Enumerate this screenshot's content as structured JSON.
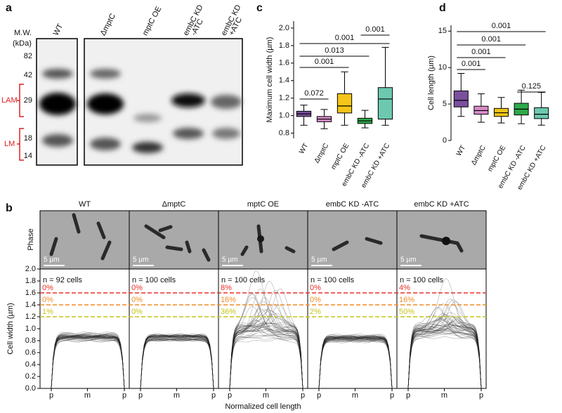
{
  "panel_a": {
    "letter": "a",
    "mw_label": "M.W.",
    "mw_unit": "(kDa)",
    "markers": [
      82,
      42,
      29,
      18,
      14
    ],
    "lanes": [
      [
        "WT"
      ],
      [
        "ΔmptC"
      ],
      [
        "mptC OE"
      ],
      [
        "embC KD",
        "-ATC"
      ],
      [
        "embC KD",
        "+ATC"
      ]
    ],
    "bands": [
      "LAM",
      "LM"
    ]
  },
  "panel_b": {
    "letter": "b",
    "row_label": "Phase",
    "columns": [
      "WT",
      "ΔmptC",
      "mptC OE",
      "embC KD -ATC",
      "embC KD +ATC"
    ],
    "scale_bar": "5 µm"
  },
  "chart_data": [
    {
      "type": "box",
      "letter": "c",
      "ylabel": "Maximum cell width (µm)",
      "categories": [
        "WT",
        "ΔmptC",
        "mptC OE",
        "embC KD -ATC",
        "embC KD +ATC"
      ],
      "ylim": [
        0.74,
        2.08
      ],
      "yticks": [
        0.8,
        {
          "value": 1,
          "label": "1.0"
        },
        1.2,
        1.4,
        1.6,
        1.8,
        {
          "value": 2,
          "label": "2.0"
        }
      ],
      "boxes": [
        {
          "min": 0.89,
          "q1": 0.99,
          "median": 1.02,
          "q3": 1.05,
          "max": 1.12,
          "color": "#7b4f9e"
        },
        {
          "min": 0.85,
          "q1": 0.93,
          "median": 0.96,
          "q3": 0.99,
          "max": 1.07,
          "color": "#d98cc8"
        },
        {
          "min": 0.89,
          "q1": 1.03,
          "median": 1.11,
          "q3": 1.25,
          "max": 1.5,
          "color": "#f5c518"
        },
        {
          "min": 0.86,
          "q1": 0.91,
          "median": 0.94,
          "q3": 0.97,
          "max": 1.06,
          "color": "#2eaa4a"
        },
        {
          "min": 0.89,
          "q1": 0.96,
          "median": 1.19,
          "q3": 1.32,
          "max": 1.78,
          "color": "#6cc9b0"
        }
      ],
      "p_values": [
        "0.072",
        "0.001",
        "0.013",
        "0.001",
        "0.001"
      ]
    },
    {
      "type": "box",
      "letter": "d",
      "ylabel": "Cell length (µm)",
      "categories": [
        "WT",
        "ΔmptC",
        "mptC OE",
        "embC KD -ATC",
        "embC KD +ATC"
      ],
      "ylim": [
        0,
        15.8
      ],
      "yticks": [
        0,
        5,
        10,
        15
      ],
      "boxes": [
        {
          "min": 3.3,
          "q1": 4.6,
          "median": 5.5,
          "q3": 6.8,
          "max": 9.2,
          "color": "#7b4f9e"
        },
        {
          "min": 2.5,
          "q1": 3.6,
          "median": 4.1,
          "q3": 4.7,
          "max": 6.4,
          "color": "#d98cc8"
        },
        {
          "min": 2.4,
          "q1": 3.3,
          "median": 3.8,
          "q3": 4.4,
          "max": 5.9,
          "color": "#f5c518"
        },
        {
          "min": 2.3,
          "q1": 3.5,
          "median": 4.3,
          "q3": 5.1,
          "max": 6.9,
          "color": "#2eaa4a"
        },
        {
          "min": 2.1,
          "q1": 3.0,
          "median": 3.6,
          "q3": 4.5,
          "max": 6.6,
          "color": "#6cc9b0"
        }
      ],
      "p_values": [
        "0.001",
        "0.001",
        "0.001",
        "0.001",
        "0.125"
      ]
    },
    {
      "type": "profile",
      "ylabel": "Cell width (µm)",
      "xlabel": "Normalized cell length",
      "ylim": [
        0,
        2
      ],
      "yticks": [
        {
          "value": 0,
          "label": "0.0"
        },
        0.2,
        0.4,
        0.6,
        0.8,
        {
          "value": 1,
          "label": "1.0"
        },
        1.2,
        1.4,
        1.6,
        1.8,
        {
          "value": 2,
          "label": "2.0"
        }
      ],
      "xticks": [
        "p",
        "m",
        "p"
      ],
      "thresholds": [
        {
          "value": 1.6,
          "color": "#e8302a"
        },
        {
          "value": 1.4,
          "color": "#f28c28"
        },
        {
          "value": 1.2,
          "color": "#c4c41c"
        }
      ],
      "panels": [
        {
          "n": "n = 92 cells",
          "values": [
            0,
            0,
            1
          ],
          "value_labels": [
            "0%",
            "0%",
            "1%"
          ]
        },
        {
          "n": "n = 100 cells",
          "values": [
            0,
            0,
            0
          ],
          "value_labels": [
            "0%",
            "0%",
            "0%"
          ]
        },
        {
          "n": "n = 100 cells",
          "values": [
            8,
            16,
            36
          ],
          "value_labels": [
            "8%",
            "16%",
            "36%"
          ]
        },
        {
          "n": "n = 100 cells",
          "values": [
            0,
            0,
            2
          ],
          "value_labels": [
            "0%",
            "0%",
            "2%"
          ]
        },
        {
          "n": "n = 100 cells",
          "values": [
            4,
            16,
            50
          ],
          "value_labels": [
            "4%",
            "16%",
            "50%"
          ]
        }
      ]
    }
  ]
}
